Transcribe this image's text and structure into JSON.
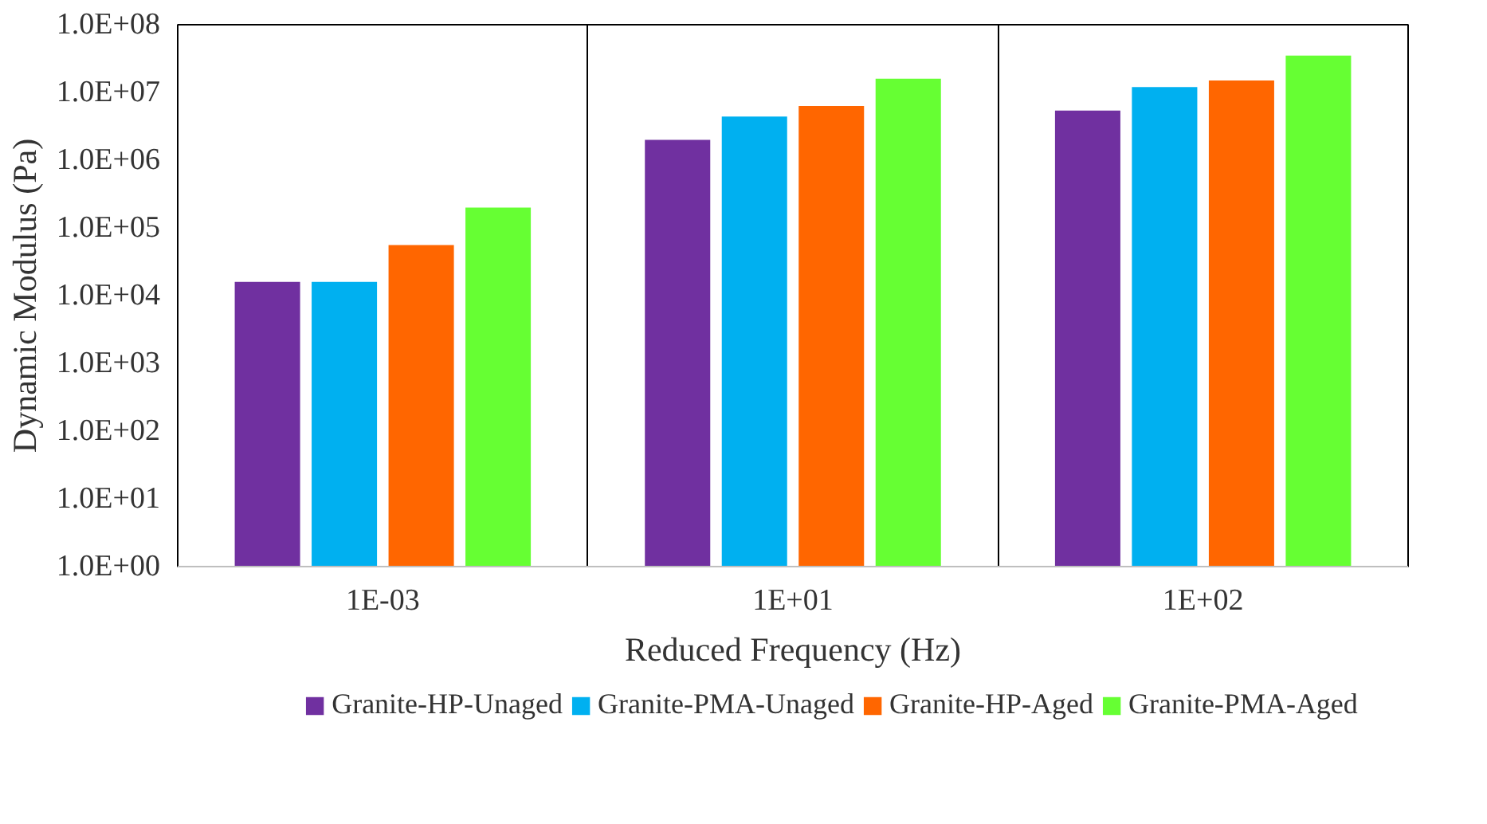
{
  "chart_data": {
    "type": "bar",
    "xlabel": "Reduced Frequency (Hz)",
    "ylabel": "Dynamic Modulus (Pa)",
    "categories": [
      "1E-03",
      "1E+01",
      "1E+02"
    ],
    "series": [
      {
        "name": "Granite-HP-Unaged",
        "color": "#7030a0",
        "values": [
          16000,
          2000000,
          5400000
        ]
      },
      {
        "name": "Granite-PMA-Unaged",
        "color": "#00b0f0",
        "values": [
          16000,
          4400000,
          12000000
        ]
      },
      {
        "name": "Granite-HP-Aged",
        "color": "#ff6600",
        "values": [
          56000,
          6300000,
          15000000
        ]
      },
      {
        "name": "Granite-PMA-Aged",
        "color": "#66ff33",
        "values": [
          200000,
          16000000,
          35000000
        ]
      }
    ],
    "log": "y",
    "ylim": [
      1,
      100000000
    ],
    "yticks": [
      {
        "value": 1,
        "label": "1.0E+00"
      },
      {
        "value": 10,
        "label": "1.0E+01"
      },
      {
        "value": 100,
        "label": "1.0E+02"
      },
      {
        "value": 1000,
        "label": "1.0E+03"
      },
      {
        "value": 10000,
        "label": "1.0E+04"
      },
      {
        "value": 100000,
        "label": "1.0E+05"
      },
      {
        "value": 1000000,
        "label": "1.0E+06"
      },
      {
        "value": 10000000,
        "label": "1.0E+07"
      },
      {
        "value": 100000000,
        "label": "1.0E+08"
      }
    ],
    "grid": "x",
    "legend": "bottom"
  }
}
